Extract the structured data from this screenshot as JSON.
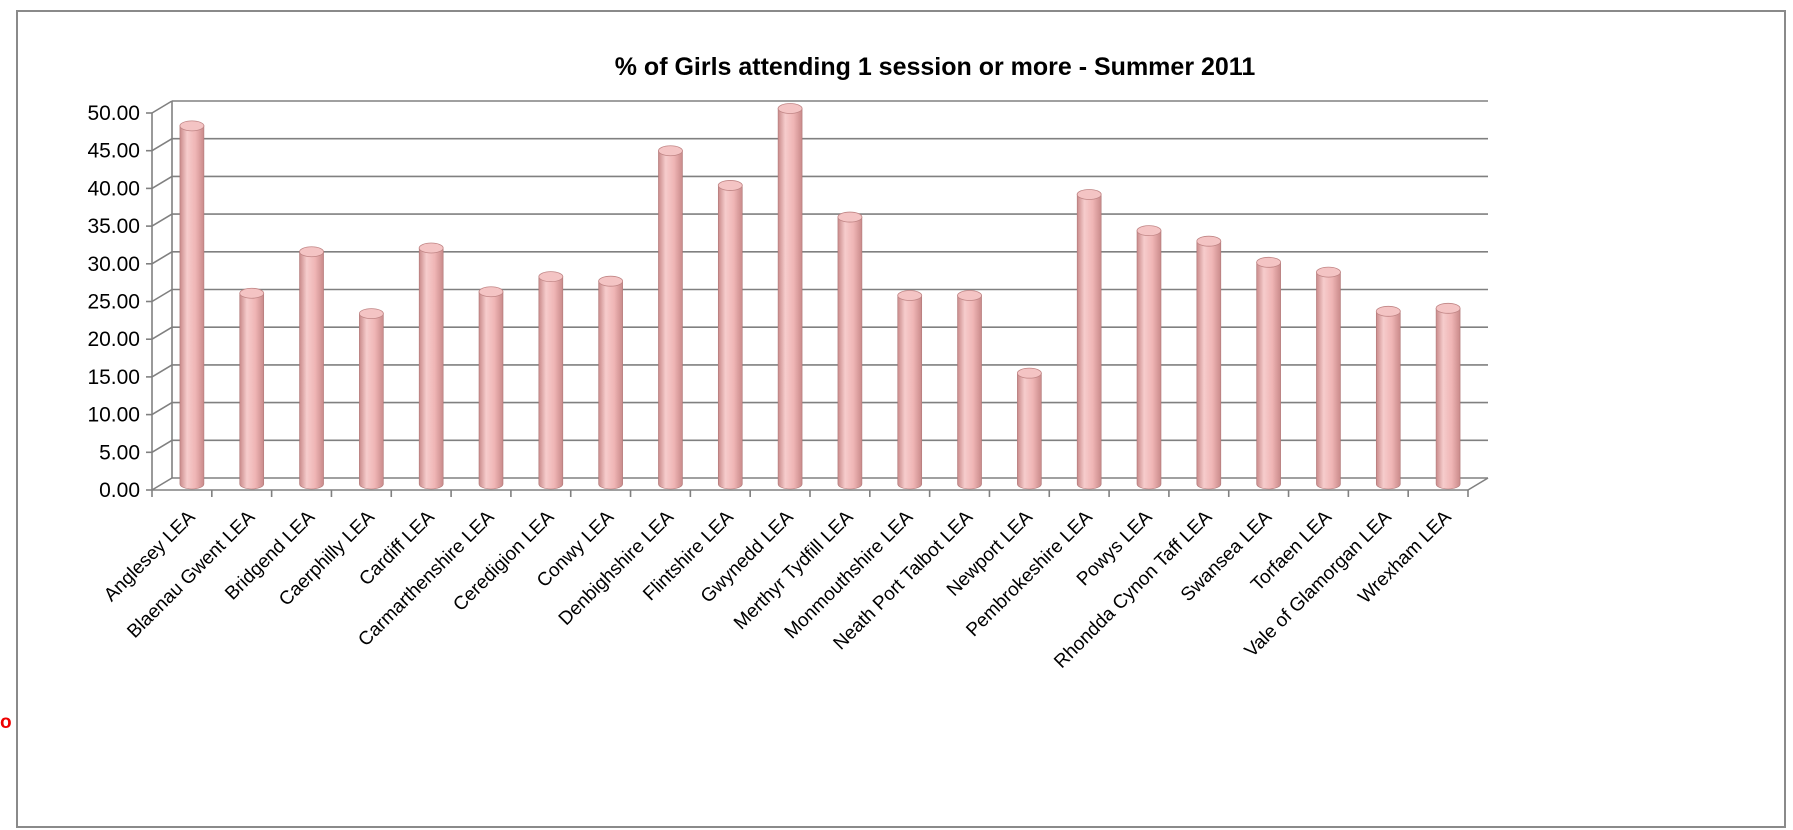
{
  "fragment_text": "o",
  "colors": {
    "bar_light": "#f6cccc",
    "bar_mid": "#efb5b5",
    "bar_dark": "#c98a8a",
    "bar_top": "#f4c4c4",
    "gridline": "#808080",
    "fragment_red": "#ee0000"
  },
  "chart_data": {
    "type": "bar",
    "title": "% of Girls attending 1 session or more - Summer 2011",
    "xlabel": "",
    "ylabel": "",
    "ylim": [
      0,
      50
    ],
    "yticks": [
      "0.00",
      "5.00",
      "10.00",
      "15.00",
      "20.00",
      "25.00",
      "30.00",
      "35.00",
      "40.00",
      "45.00",
      "50.00"
    ],
    "grid": true,
    "legend": "none",
    "style": "3d-cylinder",
    "categories": [
      "Anglesey LEA",
      "Blaenau Gwent LEA",
      "Bridgend LEA",
      "Caerphilly LEA",
      "Cardiff LEA",
      "Carmarthenshire LEA",
      "Ceredigion LEA",
      "Conwy LEA",
      "Denbighshire LEA",
      "Flintshire LEA",
      "Gwynedd LEA",
      "Merthyr Tydfill LEA",
      "Monmouthshire LEA",
      "Neath Port Talbot LEA",
      "Newport LEA",
      "Pembrokeshire LEA",
      "Powys LEA",
      "Rhondda Cynon Taff LEA",
      "Swansea LEA",
      "Torfaen LEA",
      "Vale of Glamorgan LEA",
      "Wrexham LEA"
    ],
    "values": [
      47.5,
      25.3,
      30.8,
      22.6,
      31.3,
      25.5,
      27.5,
      26.9,
      44.2,
      39.6,
      49.8,
      35.4,
      25.0,
      25.0,
      14.7,
      38.4,
      33.6,
      32.2,
      29.4,
      28.1,
      22.9,
      23.3
    ]
  }
}
